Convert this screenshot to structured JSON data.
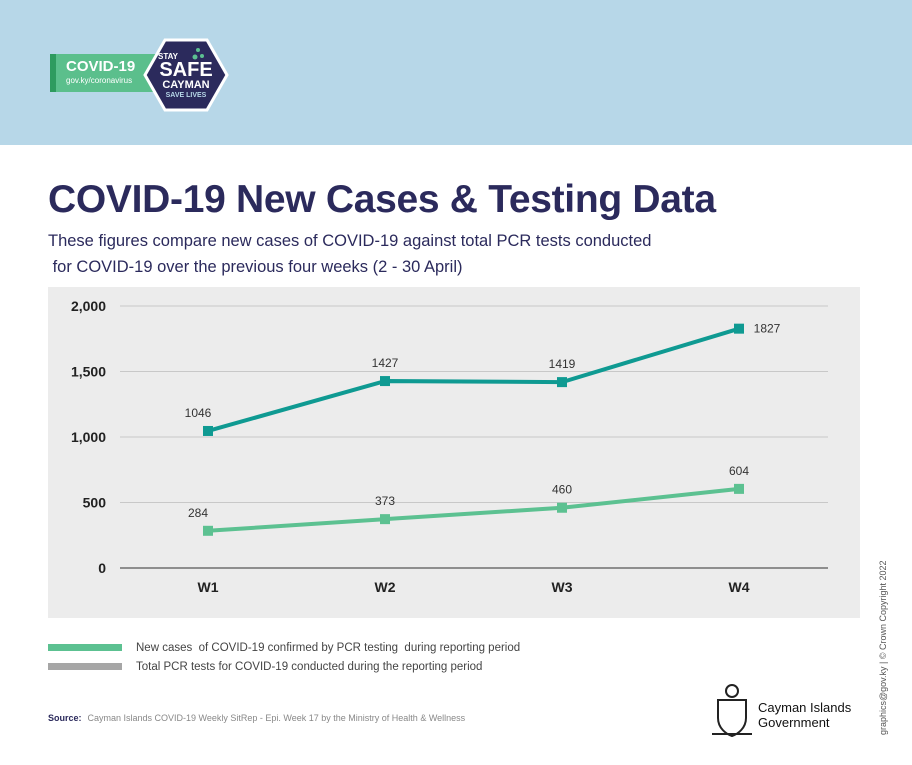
{
  "header": {
    "badge_title": "COVID-19",
    "badge_url": "gov.ky/coronavirus",
    "logo_lines": [
      "STAY",
      "SAFE",
      "CAYMAN",
      "SAVE LIVES"
    ]
  },
  "title": "COVID-19 New Cases & Testing Data",
  "subtitle_line1": "These figures compare new cases of COVID-19 against total PCR tests conducted",
  "subtitle_line2": " for COVID-19 over the previous four weeks (2 - 30 April)",
  "chart_data": {
    "type": "line",
    "categories": [
      "W1",
      "W2",
      "W3",
      "W4"
    ],
    "series": [
      {
        "name": "Total PCR tests for COVID-19 conducted during the reporting period",
        "values": [
          1046,
          1427,
          1419,
          1827
        ],
        "color": "#0f9a92",
        "legend_color": "#a6a6a6"
      },
      {
        "name": "New cases  of COVID-19 confirmed by PCR testing  during reporting period",
        "values": [
          284,
          373,
          460,
          604
        ],
        "color": "#5cc191",
        "legend_color": "#5cc191"
      }
    ],
    "ylim": [
      0,
      2000
    ],
    "yticks": [
      "0",
      "500",
      "1,000",
      "1,500",
      "2,000"
    ],
    "ytick_values": [
      0,
      500,
      1000,
      1500,
      2000
    ],
    "grid": true,
    "legend_placement": "bottom"
  },
  "legend": [
    "New cases  of COVID-19 confirmed by PCR testing  during reporting period",
    "Total PCR tests for COVID-19 conducted during the reporting period"
  ],
  "source_label": "Source:",
  "source_text": "Cayman Islands COVID-19 Weekly SitRep - Epi. Week 17 by the Ministry of Health & Wellness",
  "gov": {
    "name": "Cayman Islands",
    "sub": "Government"
  },
  "copyright": "graphics@gov.ky | © Crown Copyright 2022"
}
